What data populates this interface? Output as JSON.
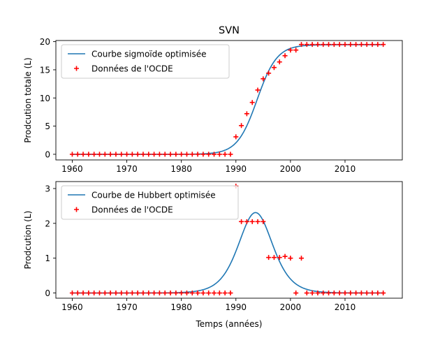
{
  "figure_title": "SVN",
  "chart_data": [
    {
      "type": "line",
      "title": "SVN",
      "xlabel": "",
      "ylabel": "Prodcution totale (L)",
      "xlim": [
        1957,
        2020.5
      ],
      "ylim": [
        -1,
        20.2
      ],
      "xticks": [
        1960,
        1970,
        1980,
        1990,
        2000,
        2010
      ],
      "yticks": [
        0,
        5,
        10,
        15,
        20
      ],
      "legend_position": "top-left",
      "grid": false,
      "series": [
        {
          "name": "Courbe sigmoïde optimisée",
          "kind": "line",
          "color": "#1f77b4",
          "model": "sigmoid",
          "params": {
            "K": 19.45,
            "t0": 1993.9,
            "r": 0.55
          }
        },
        {
          "name": "Données de l'OCDE",
          "kind": "scatter",
          "marker": "+",
          "color": "#ff0000",
          "x": [
            1960,
            1961,
            1962,
            1963,
            1964,
            1965,
            1966,
            1967,
            1968,
            1969,
            1970,
            1971,
            1972,
            1973,
            1974,
            1975,
            1976,
            1977,
            1978,
            1979,
            1980,
            1981,
            1982,
            1983,
            1984,
            1985,
            1986,
            1987,
            1988,
            1989,
            1990,
            1991,
            1992,
            1993,
            1994,
            1995,
            1996,
            1997,
            1998,
            1999,
            2000,
            2001,
            2002,
            2003,
            2004,
            2005,
            2006,
            2007,
            2008,
            2009,
            2010,
            2011,
            2012,
            2013,
            2014,
            2015,
            2016,
            2017
          ],
          "y": [
            0,
            0,
            0,
            0,
            0,
            0,
            0,
            0,
            0,
            0,
            0,
            0,
            0,
            0,
            0,
            0,
            0,
            0,
            0,
            0,
            0,
            0,
            0,
            0,
            0,
            0,
            0,
            0,
            0,
            0,
            3.1,
            5.1,
            7.2,
            9.2,
            11.4,
            13.4,
            14.4,
            15.4,
            16.4,
            17.5,
            18.5,
            18.5,
            19.5,
            19.5,
            19.5,
            19.5,
            19.5,
            19.5,
            19.5,
            19.5,
            19.5,
            19.5,
            19.5,
            19.5,
            19.5,
            19.5,
            19.5,
            19.5
          ]
        }
      ]
    },
    {
      "type": "line",
      "title": "",
      "xlabel": "Temps (années)",
      "ylabel": "Prodcution (L)",
      "xlim": [
        1957,
        2020.5
      ],
      "ylim": [
        -0.15,
        3.2
      ],
      "xticks": [
        1960,
        1970,
        1980,
        1990,
        2000,
        2010
      ],
      "yticks": [
        0,
        1,
        2,
        3
      ],
      "legend_position": "top-left",
      "grid": false,
      "series": [
        {
          "name": "Courbe de Hubbert optimisée",
          "kind": "line",
          "color": "#1f77b4",
          "model": "hubbert",
          "params": {
            "K": 19.45,
            "t0": 1993.6,
            "r": 0.475
          }
        },
        {
          "name": "Données de l'OCDE",
          "kind": "scatter",
          "marker": "+",
          "color": "#ff0000",
          "x": [
            1960,
            1961,
            1962,
            1963,
            1964,
            1965,
            1966,
            1967,
            1968,
            1969,
            1970,
            1971,
            1972,
            1973,
            1974,
            1975,
            1976,
            1977,
            1978,
            1979,
            1980,
            1981,
            1982,
            1983,
            1984,
            1985,
            1986,
            1987,
            1988,
            1989,
            1990,
            1991,
            1992,
            1993,
            1994,
            1995,
            1996,
            1997,
            1998,
            1999,
            2000,
            2001,
            2002,
            2003,
            2004,
            2005,
            2006,
            2007,
            2008,
            2009,
            2010,
            2011,
            2012,
            2013,
            2014,
            2015,
            2016,
            2017
          ],
          "y": [
            0,
            0,
            0,
            0,
            0,
            0,
            0,
            0,
            0,
            0,
            0,
            0,
            0,
            0,
            0,
            0,
            0,
            0,
            0,
            0,
            0,
            0,
            0,
            0,
            0,
            0,
            0,
            0,
            0,
            0,
            3.07,
            2.05,
            2.05,
            2.05,
            2.05,
            2.05,
            1.02,
            1.02,
            1.02,
            1.05,
            1.0,
            0,
            1.0,
            0,
            0,
            0,
            0,
            0,
            0,
            0,
            0,
            0,
            0,
            0,
            0,
            0,
            0,
            0
          ]
        }
      ]
    }
  ]
}
